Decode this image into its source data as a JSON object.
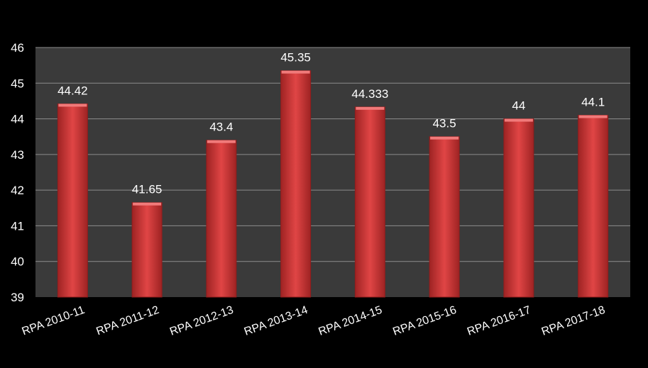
{
  "chart_data": {
    "type": "bar",
    "categories": [
      "RPA 2010-11",
      "RPA 2011-12",
      "RPA 2012-13",
      "RPA 2013-14",
      "RPA 2014-15",
      "RPA 2015-16",
      "RPA 2016-17",
      "RPA 2017-18"
    ],
    "values": [
      44.42,
      41.65,
      43.4,
      45.35,
      44.333,
      43.5,
      44,
      44.1
    ],
    "data_labels": [
      "44.42",
      "41.65",
      "43.4",
      "45.35",
      "44.333",
      "43.5",
      "44",
      "44.1"
    ],
    "ylim": [
      39,
      46
    ],
    "yticks": [
      "39",
      "40",
      "41",
      "42",
      "43",
      "44",
      "45",
      "46"
    ],
    "grid": true,
    "legend": "none",
    "title": "",
    "xlabel": "",
    "ylabel": "",
    "colors": {
      "page_background": "#000000",
      "plot_background": "#3a3a3a",
      "gridline": "#8c8c8c",
      "bar": "#d93a3a",
      "bar_dark": "#8f1d1d",
      "text": "#ffffff"
    }
  }
}
